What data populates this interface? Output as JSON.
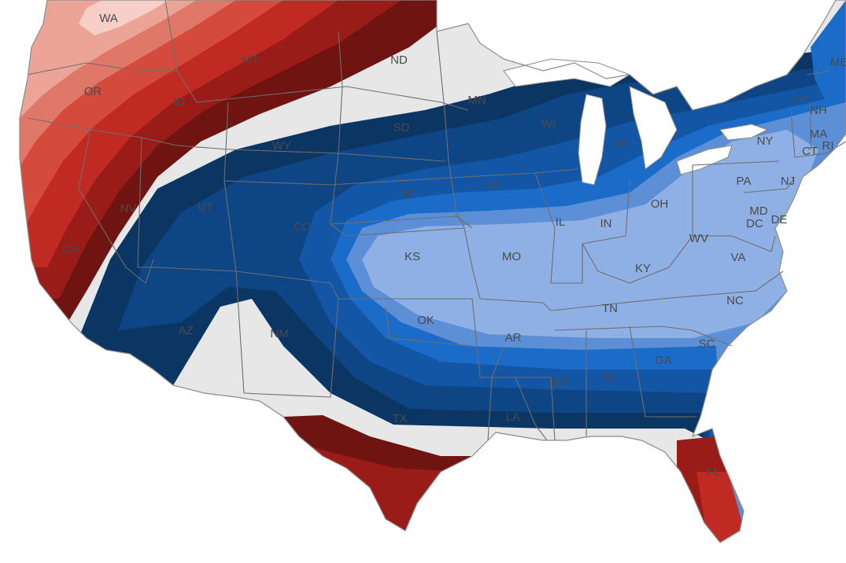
{
  "map": {
    "type": "choropleth-contour",
    "region": "Contiguous United States",
    "colors": {
      "background": "#ffffff",
      "neutral": "#e7e7e7",
      "lakes": "#ffffff",
      "warm": [
        "#f5cfc8",
        "#eca497",
        "#e0786a",
        "#d44b3e",
        "#c02a22",
        "#9a1c18",
        "#6f1410"
      ],
      "cool": [
        "#8fb0e4",
        "#5d8fd6",
        "#1b6bc9",
        "#1356a6",
        "#0e4585",
        "#0b3563"
      ]
    },
    "state_labels": [
      {
        "id": "WA",
        "text": "WA"
      },
      {
        "id": "OR",
        "text": "OR"
      },
      {
        "id": "ID",
        "text": "ID"
      },
      {
        "id": "MT",
        "text": "MT"
      },
      {
        "id": "ND",
        "text": "ND"
      },
      {
        "id": "MN",
        "text": "MN"
      },
      {
        "id": "SD",
        "text": "SD"
      },
      {
        "id": "WY",
        "text": "WY"
      },
      {
        "id": "NV",
        "text": "NV"
      },
      {
        "id": "CA",
        "text": "CA"
      },
      {
        "id": "UT",
        "text": "UT"
      },
      {
        "id": "CO",
        "text": "CO"
      },
      {
        "id": "NE",
        "text": "NE"
      },
      {
        "id": "IA",
        "text": "IA"
      },
      {
        "id": "WI",
        "text": "WI"
      },
      {
        "id": "MI",
        "text": "MI"
      },
      {
        "id": "IL",
        "text": "IL"
      },
      {
        "id": "IN",
        "text": "IN"
      },
      {
        "id": "OH",
        "text": "OH"
      },
      {
        "id": "PA",
        "text": "PA"
      },
      {
        "id": "NY",
        "text": "NY"
      },
      {
        "id": "VT",
        "text": "VT"
      },
      {
        "id": "NH",
        "text": "NH"
      },
      {
        "id": "ME",
        "text": "ME"
      },
      {
        "id": "MA",
        "text": "MA"
      },
      {
        "id": "CT",
        "text": "CT"
      },
      {
        "id": "RI",
        "text": "RI"
      },
      {
        "id": "NJ",
        "text": "NJ"
      },
      {
        "id": "MD",
        "text": "MD"
      },
      {
        "id": "DE",
        "text": "DE"
      },
      {
        "id": "DC",
        "text": "DC"
      },
      {
        "id": "WV",
        "text": "WV"
      },
      {
        "id": "VA",
        "text": "VA"
      },
      {
        "id": "KY",
        "text": "KY"
      },
      {
        "id": "KS",
        "text": "KS"
      },
      {
        "id": "MO",
        "text": "MO"
      },
      {
        "id": "TN",
        "text": "TN"
      },
      {
        "id": "NC",
        "text": "NC"
      },
      {
        "id": "OK",
        "text": "OK"
      },
      {
        "id": "AR",
        "text": "AR"
      },
      {
        "id": "SC",
        "text": "SC"
      },
      {
        "id": "GA",
        "text": "GA"
      },
      {
        "id": "AL",
        "text": "AL"
      },
      {
        "id": "MS",
        "text": "MS"
      },
      {
        "id": "AZ",
        "text": "AZ"
      },
      {
        "id": "NM",
        "text": "NM"
      },
      {
        "id": "TX",
        "text": "TX"
      },
      {
        "id": "LA",
        "text": "LA"
      },
      {
        "id": "FL",
        "text": "FL"
      }
    ]
  }
}
